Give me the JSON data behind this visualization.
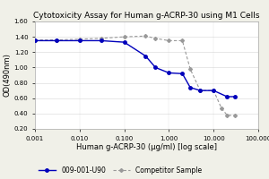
{
  "title": "Cytotoxicity Assay for Human g-ACRP-30 using M1 Cells",
  "xlabel": "Human g-ACRP-30 (μg/ml) [log scale]",
  "ylabel": "OD(490nm)",
  "ylim": [
    0.2,
    1.6
  ],
  "yticks": [
    0.2,
    0.4,
    0.6,
    0.8,
    1.0,
    1.2,
    1.4,
    1.6
  ],
  "ytick_labels": [
    "0.20",
    "0.40",
    "0.60",
    "0.80",
    "1.00",
    "1.20",
    "1.40",
    "1.60"
  ],
  "xtick_labels": [
    "0.001",
    "0.010",
    "0.100",
    "1.000",
    "10.000",
    "100.000"
  ],
  "xtick_values": [
    0.001,
    0.01,
    0.1,
    1.0,
    10.0,
    100.0
  ],
  "series1_name": "009-001-U90",
  "series1_color": "#0000bb",
  "series1_x": [
    0.001,
    0.003,
    0.01,
    0.03,
    0.1,
    0.3,
    0.5,
    1.0,
    2.0,
    3.0,
    5.0,
    10.0,
    20.0,
    30.0
  ],
  "series1_y": [
    1.35,
    1.35,
    1.35,
    1.35,
    1.33,
    1.15,
    1.0,
    0.93,
    0.92,
    0.74,
    0.7,
    0.7,
    0.62,
    0.62
  ],
  "series2_name": "Competitor Sample",
  "series2_color": "#999999",
  "series2_x": [
    0.001,
    0.003,
    0.01,
    0.03,
    0.1,
    0.3,
    0.5,
    1.0,
    2.0,
    3.0,
    5.0,
    10.0,
    15.0,
    20.0,
    30.0
  ],
  "series2_y": [
    1.36,
    1.36,
    1.37,
    1.38,
    1.4,
    1.41,
    1.38,
    1.35,
    1.35,
    0.98,
    0.7,
    0.7,
    0.47,
    0.38,
    0.37
  ],
  "background_color": "#f0f0e8",
  "plot_bg_color": "#ffffff",
  "title_fontsize": 6.5,
  "axis_fontsize": 6.0,
  "tick_fontsize": 5.0,
  "legend_fontsize": 5.5
}
